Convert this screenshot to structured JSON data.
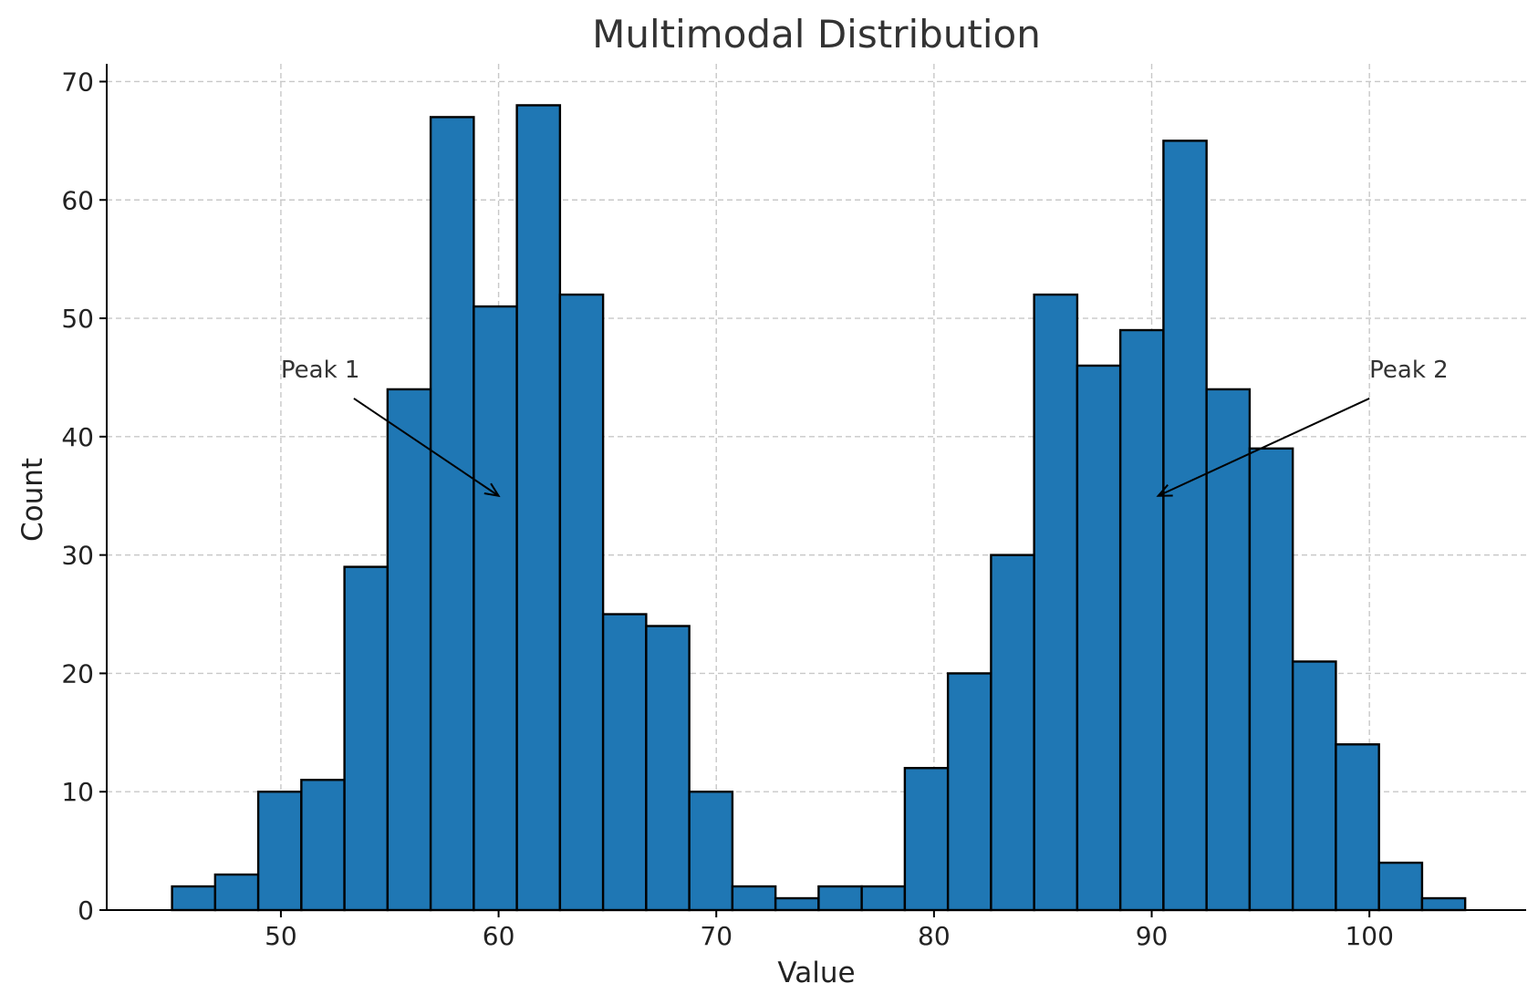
{
  "chart_data": {
    "type": "bar",
    "subtype": "histogram",
    "title": "Multimodal Distribution",
    "xlabel": "Value",
    "ylabel": "Count",
    "xlim": [
      42,
      107.2
    ],
    "ylim": [
      0,
      71.5
    ],
    "xticks": [
      50,
      60,
      70,
      80,
      90,
      100
    ],
    "yticks": [
      0,
      10,
      20,
      30,
      40,
      50,
      60,
      70
    ],
    "grid": true,
    "bar_color": "#1f77b4",
    "edge_color": "#000000",
    "bin_start": 45.0,
    "bin_width": 1.98,
    "values": [
      2,
      3,
      10,
      11,
      29,
      44,
      67,
      51,
      68,
      52,
      25,
      24,
      10,
      2,
      1,
      2,
      2,
      12,
      20,
      30,
      52,
      46,
      49,
      65,
      44,
      39,
      21,
      14,
      4,
      1
    ],
    "annotations": [
      {
        "text": "Peak 1",
        "text_x": 50,
        "text_y": 45,
        "point_x": 60,
        "point_y": 35
      },
      {
        "text": "Peak 2",
        "text_x": 100,
        "text_y": 45,
        "point_x": 90.3,
        "point_y": 35
      }
    ]
  }
}
